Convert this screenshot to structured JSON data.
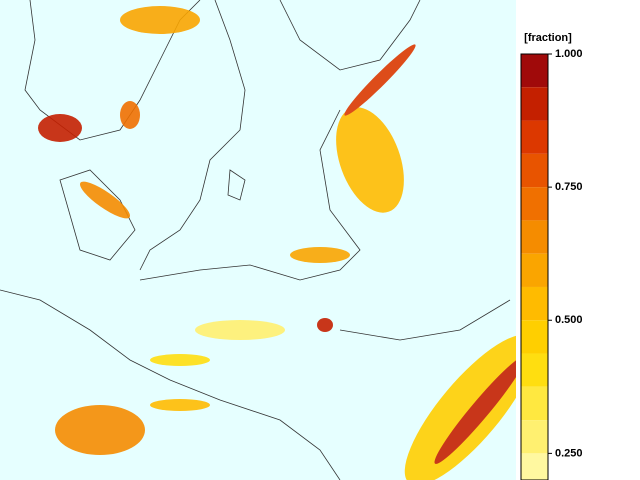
{
  "colorbar": {
    "label": "[fraction]",
    "lim": [
      0.2,
      1.0
    ],
    "ticks": [
      {
        "value": 1.0,
        "label": "1.000"
      },
      {
        "value": 0.75,
        "label": "0.750"
      },
      {
        "value": 0.5,
        "label": "0.500"
      },
      {
        "value": 0.25,
        "label": "0.250"
      }
    ],
    "levels": [
      1.0,
      0.9375,
      0.875,
      0.8125,
      0.75,
      0.6875,
      0.625,
      0.5625,
      0.5,
      0.4375,
      0.375,
      0.3125,
      0.25,
      0.1875
    ],
    "colors": [
      "#a00a0a",
      "#c42000",
      "#dc3800",
      "#e85400",
      "#f07000",
      "#f58c00",
      "#faa500",
      "#ffbb00",
      "#ffcf00",
      "#ffde10",
      "#ffe840",
      "#fff070",
      "#fff8a0"
    ]
  }
}
